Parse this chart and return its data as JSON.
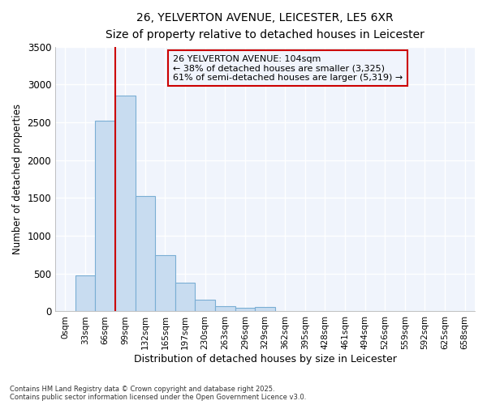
{
  "title1": "26, YELVERTON AVENUE, LEICESTER, LE5 6XR",
  "title2": "Size of property relative to detached houses in Leicester",
  "xlabel": "Distribution of detached houses by size in Leicester",
  "ylabel": "Number of detached properties",
  "bar_color": "#c8dcf0",
  "bar_edgecolor": "#7aaed4",
  "vline_color": "#cc0000",
  "vline_x": 3,
  "annotation_title": "26 YELVERTON AVENUE: 104sqm",
  "annotation_line1": "← 38% of detached houses are smaller (3,325)",
  "annotation_line2": "61% of semi-detached houses are larger (5,319) →",
  "annotation_box_color": "#cc0000",
  "background_color": "#ffffff",
  "plot_bg_color": "#f0f4fc",
  "grid_color": "#ffffff",
  "categories": [
    "0sqm",
    "33sqm",
    "66sqm",
    "99sqm",
    "132sqm",
    "165sqm",
    "197sqm",
    "230sqm",
    "263sqm",
    "296sqm",
    "329sqm",
    "362sqm",
    "395sqm",
    "428sqm",
    "461sqm",
    "494sqm",
    "526sqm",
    "559sqm",
    "592sqm",
    "625sqm",
    "658sqm"
  ],
  "values": [
    10,
    480,
    2520,
    2850,
    1530,
    740,
    375,
    155,
    70,
    50,
    60,
    0,
    0,
    0,
    0,
    0,
    0,
    0,
    0,
    0,
    0
  ],
  "ylim": [
    0,
    3500
  ],
  "yticks": [
    0,
    500,
    1000,
    1500,
    2000,
    2500,
    3000,
    3500
  ],
  "footer1": "Contains HM Land Registry data © Crown copyright and database right 2025.",
  "footer2": "Contains public sector information licensed under the Open Government Licence v3.0."
}
